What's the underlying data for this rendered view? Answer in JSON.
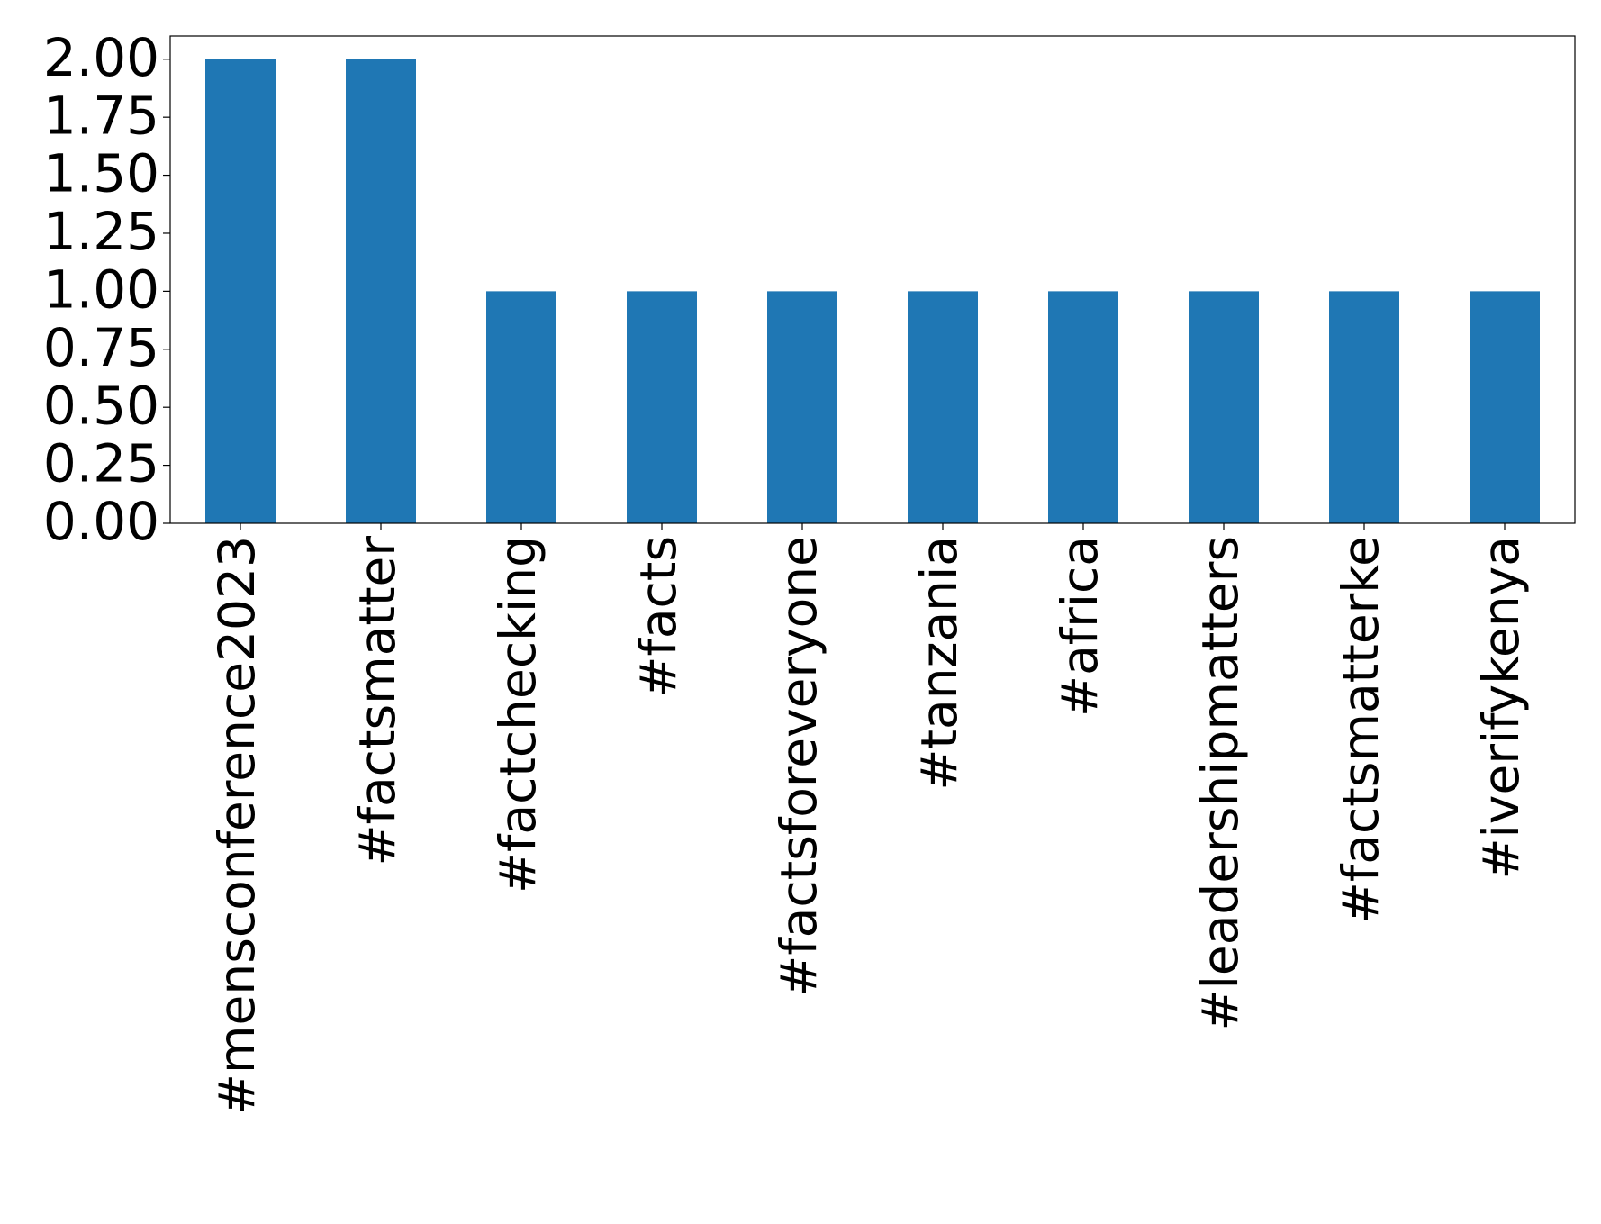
{
  "chart_data": {
    "type": "bar",
    "categories": [
      "#mensconference2023",
      "#factsmatter",
      "#factchecking",
      "#facts",
      "#factsforeveryone",
      "#tanzania",
      "#africa",
      "#leadershipmatters",
      "#factsmatterke",
      "#iverifykenya"
    ],
    "values": [
      2,
      2,
      1,
      1,
      1,
      1,
      1,
      1,
      1,
      1
    ],
    "color": "#1f77b4",
    "ylim": [
      0,
      2.1
    ],
    "yticks": [
      {
        "value": 0,
        "label": "0.00"
      },
      {
        "value": 0.25,
        "label": "0.25"
      },
      {
        "value": 0.5,
        "label": "0.50"
      },
      {
        "value": 0.75,
        "label": "0.75"
      },
      {
        "value": 1,
        "label": "1.00"
      },
      {
        "value": 1.25,
        "label": "1.25"
      },
      {
        "value": 1.5,
        "label": "1.50"
      },
      {
        "value": 1.75,
        "label": "1.75"
      },
      {
        "value": 2,
        "label": "2.00"
      }
    ],
    "grid": false
  }
}
